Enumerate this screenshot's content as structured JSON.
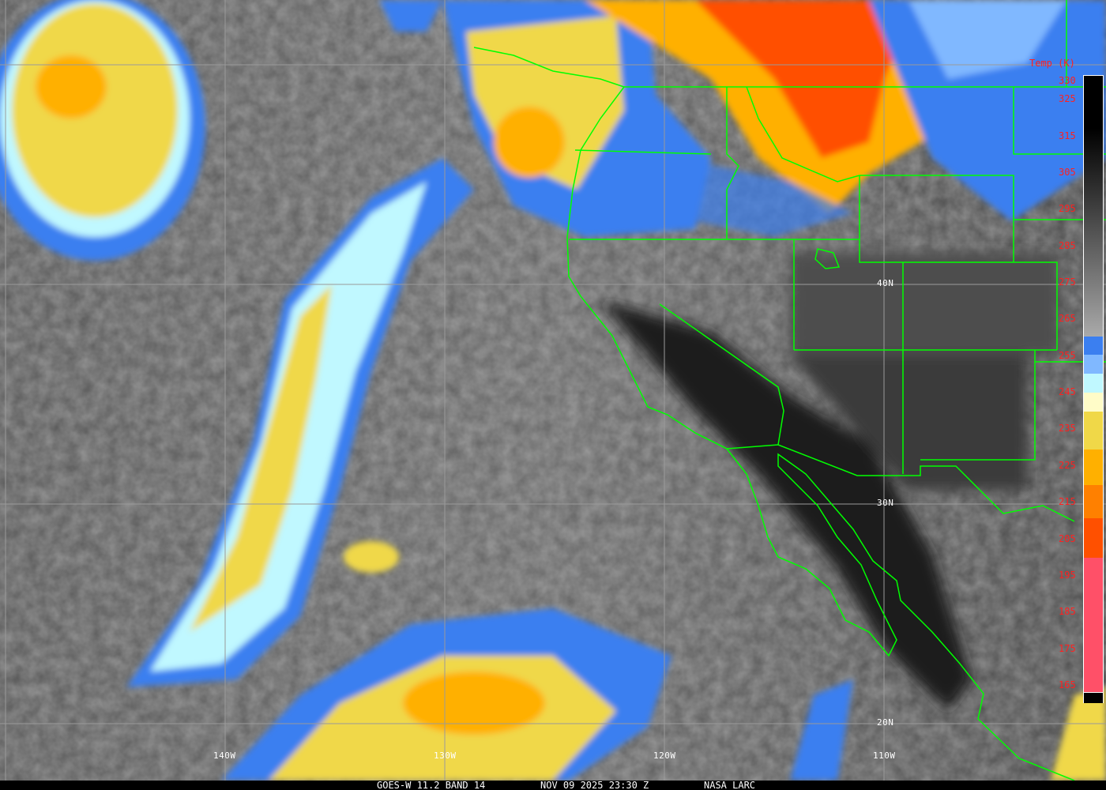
{
  "footer": {
    "satellite_band": "GOES-W 11.2 BAND 14",
    "datetime": "NOV 09 2025 23:30 Z",
    "credit": "NASA LARC"
  },
  "grid_labels": {
    "longitudes": [
      "140W",
      "130W",
      "120W",
      "110W"
    ],
    "latitudes": [
      "40N",
      "30N",
      "20N"
    ]
  },
  "colorbar": {
    "title": "Temp (K)",
    "ticks": [
      "330",
      "325",
      "315",
      "305",
      "295",
      "285",
      "275",
      "265",
      "255",
      "245",
      "235",
      "225",
      "215",
      "205",
      "195",
      "185",
      "175",
      "165"
    ],
    "color_scale": [
      {
        "from": 330,
        "to": 255,
        "color": "grayscale black-to-gray"
      },
      {
        "from": 255,
        "to": 250,
        "color": "#3b7ff0"
      },
      {
        "from": 250,
        "to": 245,
        "color": "#80b8ff"
      },
      {
        "from": 245,
        "to": 240,
        "color": "#c0f8ff"
      },
      {
        "from": 240,
        "to": 235,
        "color": "#fffcc8"
      },
      {
        "from": 235,
        "to": 225,
        "color": "#f0d848"
      },
      {
        "from": 225,
        "to": 215,
        "color": "#ffb000"
      },
      {
        "from": 215,
        "to": 208,
        "color": "#ff8000"
      },
      {
        "from": 208,
        "to": 200,
        "color": "#ff5000"
      },
      {
        "from": 200,
        "to": 165,
        "color": "#ff5068"
      }
    ]
  },
  "colors": {
    "boundaries": "#00ff00",
    "grid": "#9a9a9a",
    "tick_labels": "#ff2020"
  }
}
